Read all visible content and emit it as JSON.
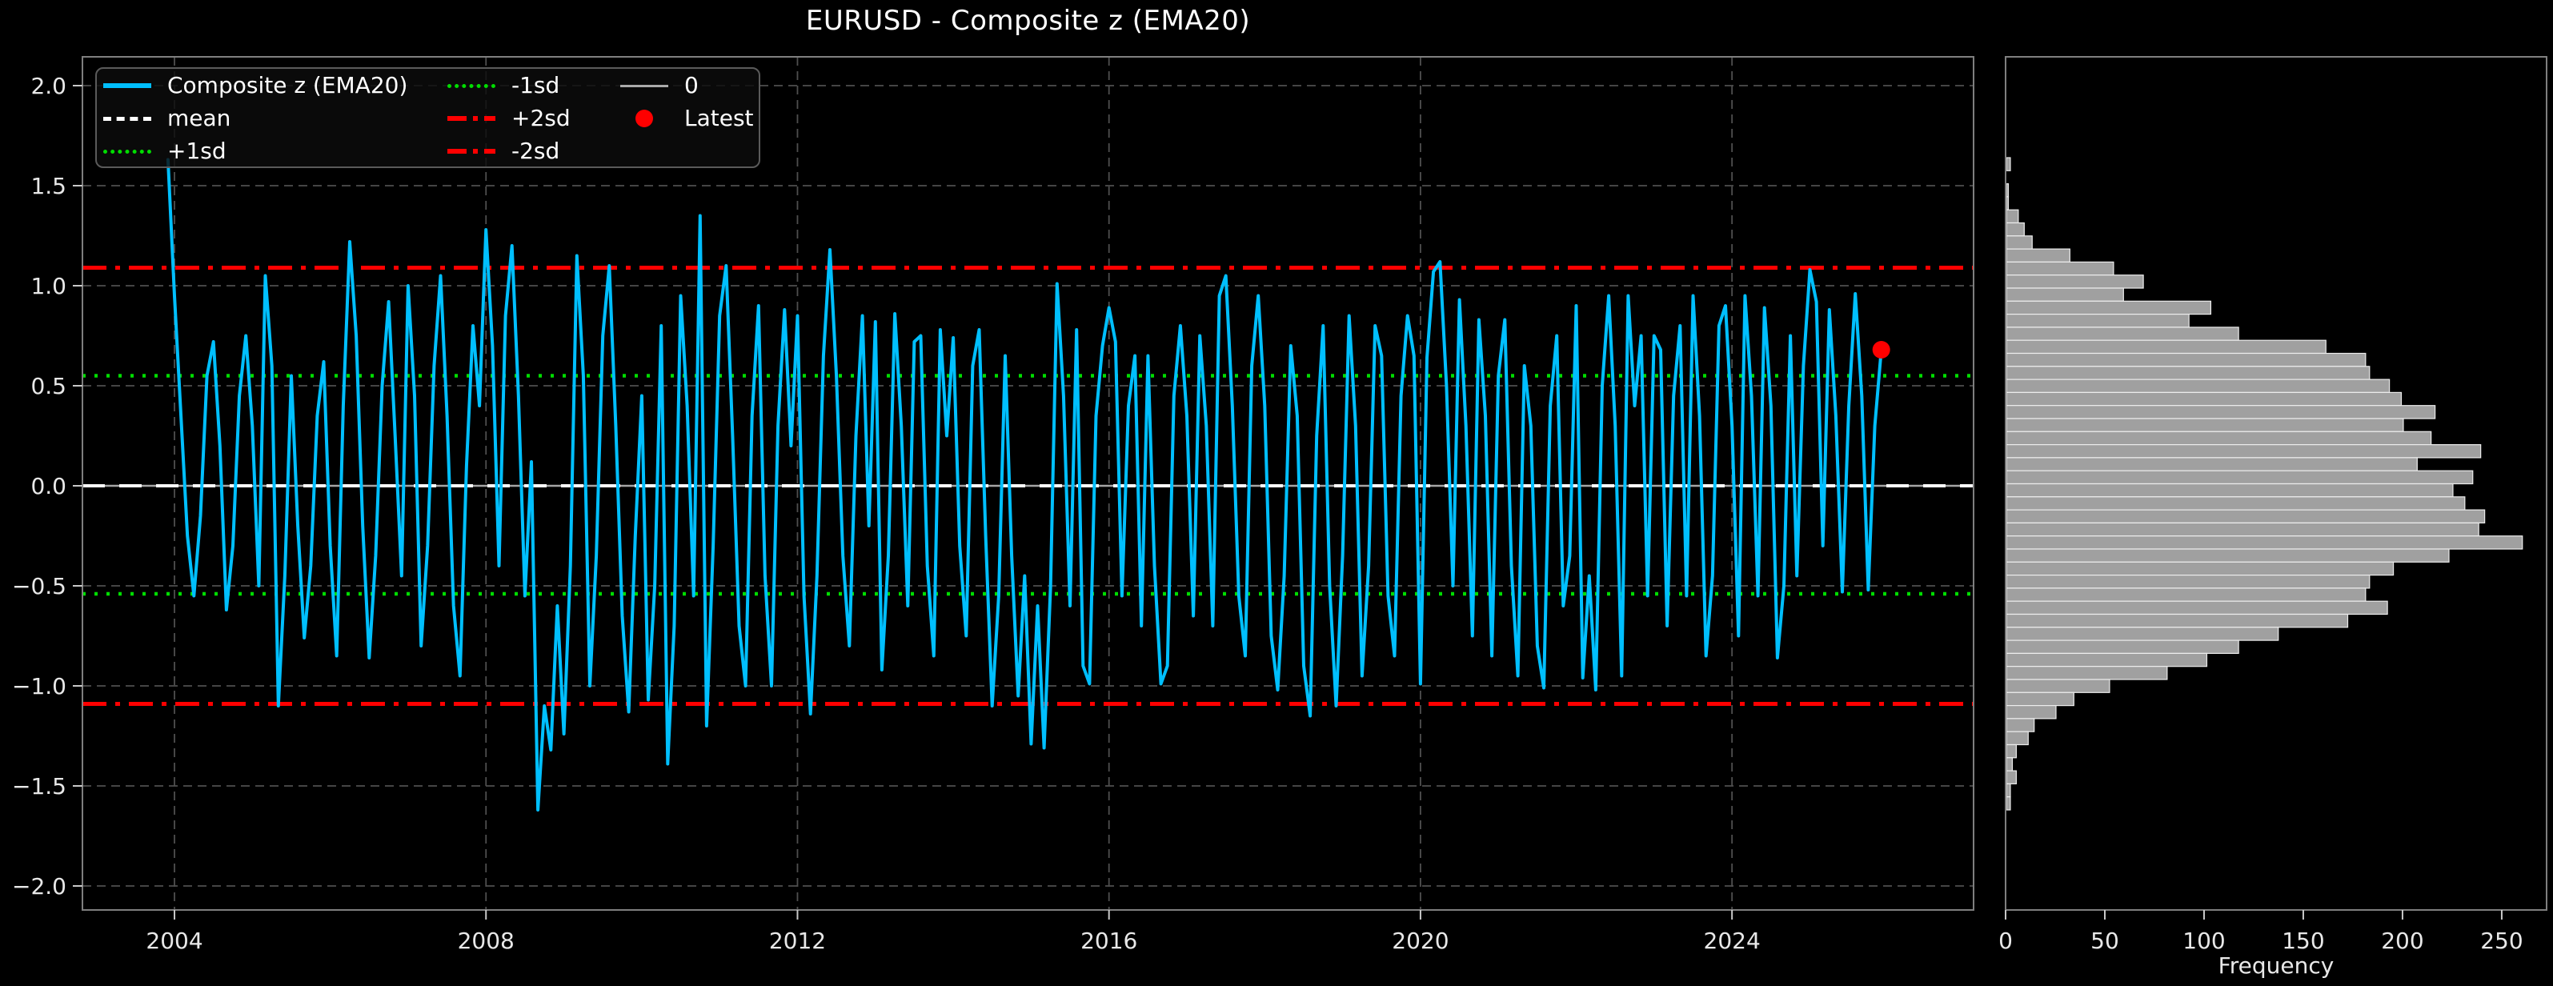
{
  "title_note": "matplotlib-style dark figure: z-score time series with side histogram",
  "colors": {
    "background": "#000000",
    "series": "#00BFFF",
    "mean_line": "#FFFFFF",
    "sd1_line": "#00DD00",
    "sd2_line": "#FF0000",
    "zero_line": "#A5A5A5",
    "latest_dot": "#FF0000",
    "grid": "#4F4F4F",
    "spine": "#7F7F7F",
    "tick_text": "#E8E8E8",
    "hist_bar": "#A0A0A0",
    "hist_bar_edge": "#ECECEC"
  },
  "legend": {
    "items": [
      {
        "label": "Composite z (EMA20)",
        "swatch": "cyan-line"
      },
      {
        "label": "mean",
        "swatch": "white-dashed"
      },
      {
        "label": "+1sd",
        "swatch": "green-dotted"
      },
      {
        "label": "-1sd",
        "swatch": "green-dotted"
      },
      {
        "label": "+2sd",
        "swatch": "red-dashdot"
      },
      {
        "label": "-2sd",
        "swatch": "red-dashdot"
      },
      {
        "label": "0",
        "swatch": "gray-line"
      },
      {
        "label": "Latest",
        "swatch": "red-dot"
      }
    ]
  },
  "chart_data": [
    {
      "type": "line",
      "title": "EURUSD - Composite z (EMA20)",
      "xlabel": "",
      "ylabel": "",
      "xlim": [
        2002.818,
        2027.102
      ],
      "ylim": [
        -2.12,
        2.144
      ],
      "xticks": [
        2004,
        2008,
        2012,
        2016,
        2020,
        2024
      ],
      "xticklabels": [
        "2004",
        "2008",
        "2012",
        "2016",
        "2020",
        "2024"
      ],
      "yticks": [
        2.0,
        1.5,
        1.0,
        0.5,
        0.0,
        -0.5,
        -1.0,
        -1.5,
        -2.0
      ],
      "yticklabels": [
        "2.0",
        "1.5",
        "1.0",
        "0.5",
        "0.0",
        "−0.5",
        "−1.0",
        "−1.5",
        "−2.0"
      ],
      "grid": true,
      "legend_position": "upper left",
      "ref_lines": {
        "mean": 0.0,
        "plus1sd": 0.55,
        "minus1sd": -0.54,
        "plus2sd": 1.09,
        "minus2sd": -1.09,
        "zero": 0.0
      },
      "latest": {
        "x": 2025.917,
        "y": 0.68
      },
      "x_start": 2003.9167,
      "x_step": 0.0833333,
      "values": [
        1.63,
        0.95,
        0.35,
        -0.25,
        -0.55,
        -0.15,
        0.55,
        0.72,
        0.2,
        -0.62,
        -0.3,
        0.45,
        0.75,
        0.3,
        -0.5,
        1.05,
        0.6,
        -1.1,
        -0.45,
        0.55,
        -0.2,
        -0.76,
        -0.4,
        0.35,
        0.62,
        -0.3,
        -0.85,
        0.4,
        1.22,
        0.75,
        -0.2,
        -0.86,
        -0.35,
        0.5,
        0.92,
        0.25,
        -0.45,
        1.0,
        0.45,
        -0.8,
        -0.3,
        0.6,
        1.05,
        0.35,
        -0.6,
        -0.95,
        0.1,
        0.8,
        0.4,
        1.28,
        0.7,
        -0.4,
        0.85,
        1.2,
        0.45,
        -0.55,
        0.12,
        -1.62,
        -1.1,
        -1.32,
        -0.6,
        -1.24,
        -0.4,
        1.15,
        0.55,
        -1.0,
        -0.35,
        0.75,
        1.1,
        0.3,
        -0.65,
        -1.13,
        -0.25,
        0.45,
        -1.07,
        -0.5,
        0.8,
        -1.39,
        -0.7,
        0.95,
        0.4,
        -0.55,
        1.35,
        -1.2,
        -0.3,
        0.85,
        1.1,
        0.25,
        -0.7,
        -1.0,
        0.35,
        0.9,
        -0.45,
        -1.0,
        0.3,
        0.88,
        0.2,
        0.85,
        -0.55,
        -1.14,
        -0.45,
        0.65,
        1.18,
        0.55,
        -0.35,
        -0.8,
        0.25,
        0.85,
        -0.2,
        0.82,
        -0.92,
        -0.35,
        0.86,
        0.3,
        -0.6,
        0.72,
        0.75,
        -0.4,
        -0.85,
        0.78,
        0.25,
        0.74,
        -0.3,
        -0.75,
        0.6,
        0.78,
        -0.25,
        -1.1,
        -0.55,
        0.65,
        -0.35,
        -1.05,
        -0.45,
        -1.29,
        -0.6,
        -1.31,
        -0.5,
        1.01,
        0.45,
        -0.6,
        0.78,
        -0.9,
        -0.99,
        0.35,
        0.7,
        0.89,
        0.72,
        -0.55,
        0.4,
        0.65,
        -0.7,
        0.65,
        -0.4,
        -0.99,
        -0.9,
        0.45,
        0.8,
        0.35,
        -0.65,
        0.75,
        0.3,
        -0.7,
        0.95,
        1.05,
        0.4,
        -0.55,
        -0.85,
        0.6,
        0.95,
        0.4,
        -0.75,
        -1.02,
        -0.45,
        0.7,
        0.35,
        -0.9,
        -1.15,
        0.25,
        0.8,
        -0.5,
        -1.1,
        -0.35,
        0.85,
        0.3,
        -0.95,
        -0.4,
        0.8,
        0.65,
        -0.55,
        -0.85,
        0.45,
        0.85,
        0.65,
        -0.99,
        0.64,
        1.07,
        1.12,
        0.5,
        -0.5,
        0.93,
        0.3,
        -0.75,
        0.83,
        0.35,
        -0.85,
        0.55,
        0.83,
        -0.4,
        -0.95,
        0.6,
        0.3,
        -0.8,
        -1.01,
        0.4,
        0.75,
        -0.6,
        -0.35,
        0.9,
        -0.96,
        -0.45,
        -1.02,
        0.5,
        0.95,
        0.3,
        -0.95,
        0.95,
        0.4,
        0.75,
        -0.55,
        0.75,
        0.68,
        -0.7,
        0.45,
        0.8,
        -0.55,
        0.95,
        0.35,
        -0.85,
        -0.45,
        0.8,
        0.9,
        0.3,
        -0.75,
        0.95,
        0.45,
        -0.55,
        0.89,
        0.4,
        -0.86,
        -0.5,
        0.75,
        -0.45,
        0.6,
        1.08,
        0.92,
        -0.3,
        0.88,
        0.35,
        -0.53,
        0.4,
        0.96,
        0.45,
        -0.52,
        0.3,
        0.68
      ]
    },
    {
      "type": "histogram",
      "orientation": "horizontal",
      "xlabel": "Frequency",
      "xlim": [
        0,
        272.6
      ],
      "xticks": [
        0,
        50,
        100,
        150,
        200,
        250
      ],
      "xticklabels": [
        "0",
        "50",
        "100",
        "150",
        "200",
        "250"
      ],
      "bin_top": 1.64,
      "bin_width": 0.0652,
      "counts": [
        2,
        0,
        1,
        1,
        6,
        9,
        13,
        32,
        54,
        69,
        59,
        103,
        92,
        117,
        161,
        181,
        183,
        193,
        199,
        216,
        200,
        214,
        239,
        207,
        235,
        225,
        231,
        241,
        238,
        260,
        223,
        195,
        183,
        181,
        192,
        172,
        137,
        117,
        101,
        81,
        52,
        34,
        25,
        14,
        11,
        5,
        3,
        5,
        2,
        2
      ]
    }
  ]
}
